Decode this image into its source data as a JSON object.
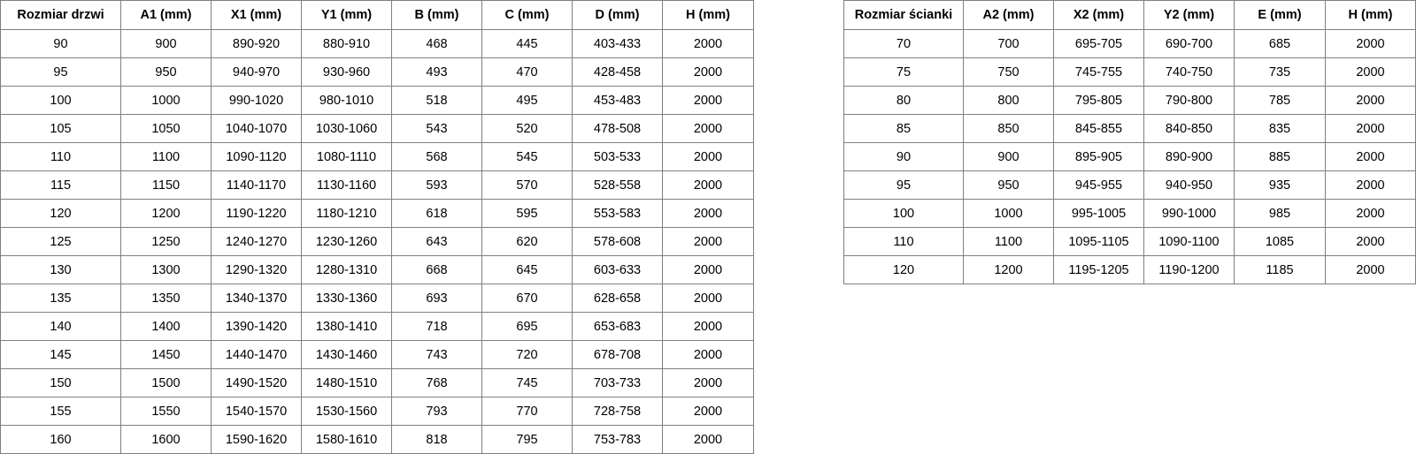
{
  "doors_table": {
    "headers": [
      "Rozmiar drzwi",
      "A1 (mm)",
      "X1 (mm)",
      "Y1 (mm)",
      "B (mm)",
      "C (mm)",
      "D (mm)",
      "H (mm)"
    ],
    "rows": [
      [
        "90",
        "900",
        "890-920",
        "880-910",
        "468",
        "445",
        "403-433",
        "2000"
      ],
      [
        "95",
        "950",
        "940-970",
        "930-960",
        "493",
        "470",
        "428-458",
        "2000"
      ],
      [
        "100",
        "1000",
        "990-1020",
        "980-1010",
        "518",
        "495",
        "453-483",
        "2000"
      ],
      [
        "105",
        "1050",
        "1040-1070",
        "1030-1060",
        "543",
        "520",
        "478-508",
        "2000"
      ],
      [
        "110",
        "1100",
        "1090-1120",
        "1080-1110",
        "568",
        "545",
        "503-533",
        "2000"
      ],
      [
        "115",
        "1150",
        "1140-1170",
        "1130-1160",
        "593",
        "570",
        "528-558",
        "2000"
      ],
      [
        "120",
        "1200",
        "1190-1220",
        "1180-1210",
        "618",
        "595",
        "553-583",
        "2000"
      ],
      [
        "125",
        "1250",
        "1240-1270",
        "1230-1260",
        "643",
        "620",
        "578-608",
        "2000"
      ],
      [
        "130",
        "1300",
        "1290-1320",
        "1280-1310",
        "668",
        "645",
        "603-633",
        "2000"
      ],
      [
        "135",
        "1350",
        "1340-1370",
        "1330-1360",
        "693",
        "670",
        "628-658",
        "2000"
      ],
      [
        "140",
        "1400",
        "1390-1420",
        "1380-1410",
        "718",
        "695",
        "653-683",
        "2000"
      ],
      [
        "145",
        "1450",
        "1440-1470",
        "1430-1460",
        "743",
        "720",
        "678-708",
        "2000"
      ],
      [
        "150",
        "1500",
        "1490-1520",
        "1480-1510",
        "768",
        "745",
        "703-733",
        "2000"
      ],
      [
        "155",
        "1550",
        "1540-1570",
        "1530-1560",
        "793",
        "770",
        "728-758",
        "2000"
      ],
      [
        "160",
        "1600",
        "1590-1620",
        "1580-1610",
        "818",
        "795",
        "753-783",
        "2000"
      ]
    ]
  },
  "wall_table": {
    "headers": [
      "Rozmiar ścianki",
      "A2 (mm)",
      "X2 (mm)",
      "Y2 (mm)",
      "E (mm)",
      "H (mm)"
    ],
    "rows": [
      [
        "70",
        "700",
        "695-705",
        "690-700",
        "685",
        "2000"
      ],
      [
        "75",
        "750",
        "745-755",
        "740-750",
        "735",
        "2000"
      ],
      [
        "80",
        "800",
        "795-805",
        "790-800",
        "785",
        "2000"
      ],
      [
        "85",
        "850",
        "845-855",
        "840-850",
        "835",
        "2000"
      ],
      [
        "90",
        "900",
        "895-905",
        "890-900",
        "885",
        "2000"
      ],
      [
        "95",
        "950",
        "945-955",
        "940-950",
        "935",
        "2000"
      ],
      [
        "100",
        "1000",
        "995-1005",
        "990-1000",
        "985",
        "2000"
      ],
      [
        "110",
        "1100",
        "1095-1105",
        "1090-1100",
        "1085",
        "2000"
      ],
      [
        "120",
        "1200",
        "1195-1205",
        "1190-1200",
        "1185",
        "2000"
      ]
    ]
  }
}
